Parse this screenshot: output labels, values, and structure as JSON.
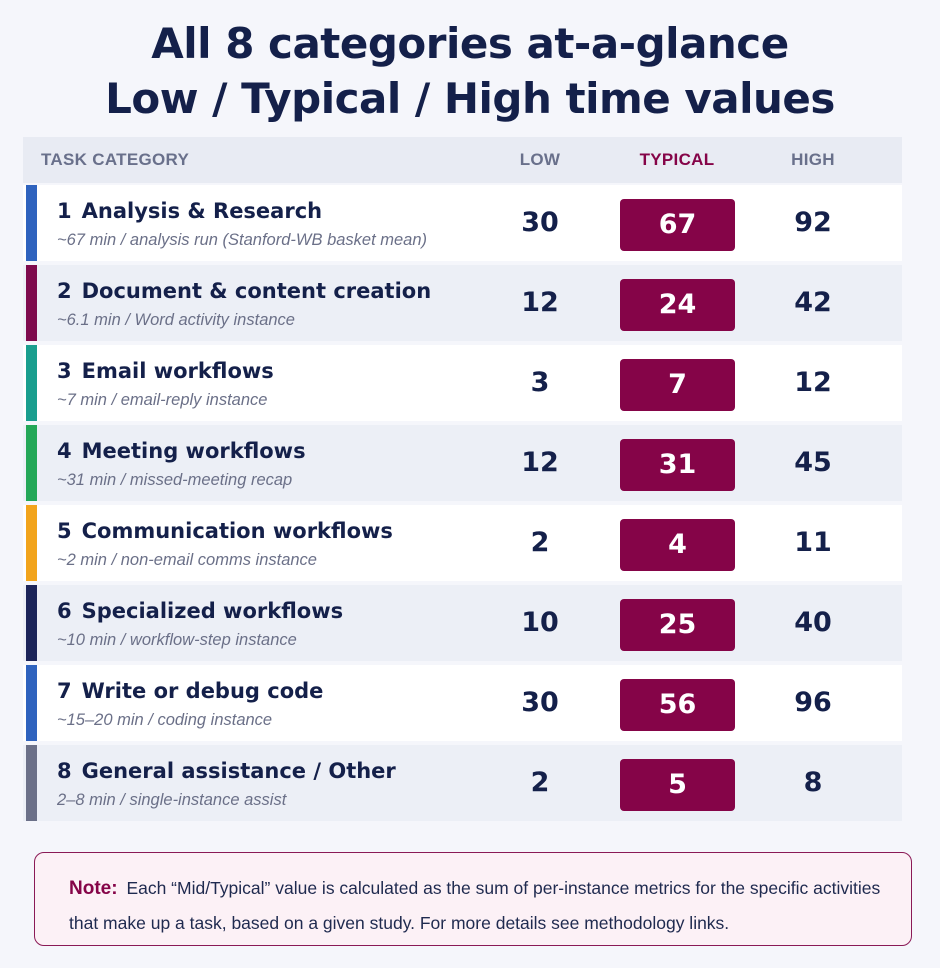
{
  "title": {
    "line1": "All 8 categories at-a-glance",
    "line2": "Low / Typical / High time values"
  },
  "table": {
    "headers": {
      "category": "TASK CATEGORY",
      "low": "LOW",
      "typical": "TYPICAL",
      "high": "HIGH"
    },
    "rows": [
      {
        "num": "1",
        "name": "Analysis & Research",
        "sub": "~67 min / analysis run  (Stanford-WB basket mean)",
        "low": "30",
        "typical": "67",
        "high": "92",
        "color": "#2f63be"
      },
      {
        "num": "2",
        "name": "Document & content creation",
        "sub": "~6.1 min / Word activity instance",
        "low": "12",
        "typical": "24",
        "high": "42",
        "color": "#7e0a4d"
      },
      {
        "num": "3",
        "name": "Email workflows",
        "sub": "~7 min / email-reply instance",
        "low": "3",
        "typical": "7",
        "high": "12",
        "color": "#1a9e8e"
      },
      {
        "num": "4",
        "name": "Meeting workflows",
        "sub": "~31 min / missed-meeting recap",
        "low": "12",
        "typical": "31",
        "high": "45",
        "color": "#23a757"
      },
      {
        "num": "5",
        "name": "Communication workflows",
        "sub": "~2 min / non-email comms instance",
        "low": "2",
        "typical": "4",
        "high": "11",
        "color": "#f2a41c"
      },
      {
        "num": "6",
        "name": "Specialized workflows",
        "sub": "~10 min / workflow-step instance",
        "low": "10",
        "typical": "25",
        "high": "40",
        "color": "#1c2459"
      },
      {
        "num": "7",
        "name": "Write or debug code",
        "sub": "~15–20 min / coding instance",
        "low": "30",
        "typical": "56",
        "high": "96",
        "color": "#2f63be"
      },
      {
        "num": "8",
        "name": "General assistance / Other",
        "sub": "2–8 min / single-instance assist",
        "low": "2",
        "typical": "5",
        "high": "8",
        "color": "#6b7088"
      }
    ]
  },
  "note": {
    "label": "Note:",
    "text": "Each “Mid/Typical” value is calculated as the sum of per-instance metrics for the specific activities that make up a task, based on a given study. For more details see methodology links."
  },
  "colors": {
    "accent": "#850448",
    "heading": "#14204a"
  }
}
